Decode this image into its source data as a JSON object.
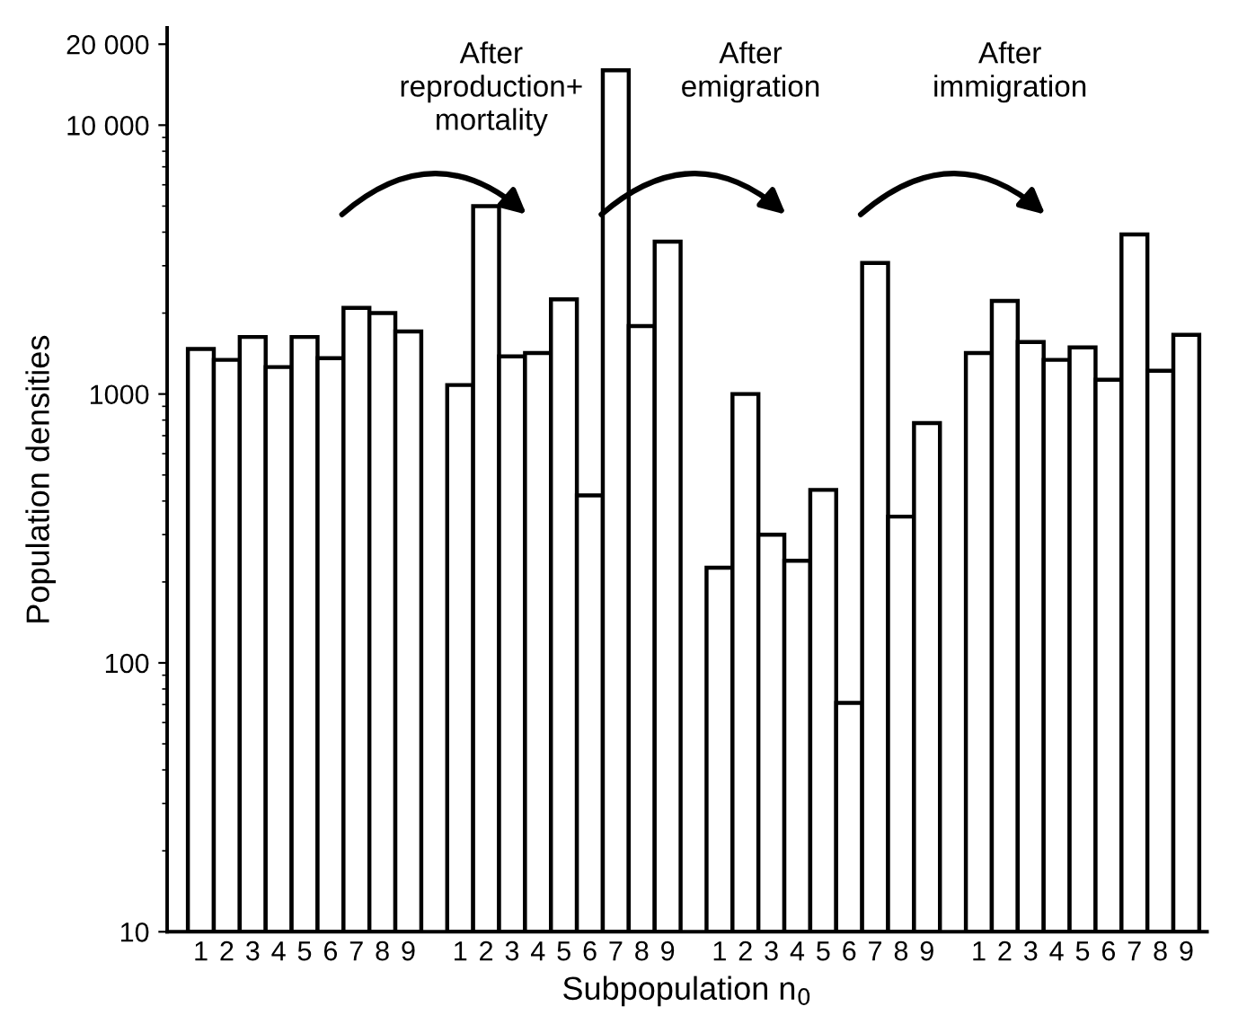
{
  "chart_data": {
    "type": "bar",
    "xlabel": "Subpopulation n$_{0}$",
    "ylabel": "Population densities",
    "categories": [
      "1",
      "2",
      "3",
      "4",
      "5",
      "6",
      "7",
      "8",
      "9",
      null,
      "1",
      "2",
      "3",
      "4",
      "5",
      "6",
      "7",
      "8",
      "9",
      null,
      "1",
      "2",
      "3",
      "4",
      "5",
      "6",
      "7",
      "8",
      "9",
      null,
      "1",
      "2",
      "3",
      "4",
      "5",
      "6",
      "7",
      "8",
      "9"
    ],
    "values": [
      1470,
      1340,
      1630,
      1260,
      1630,
      1360,
      2090,
      2000,
      1710,
      null,
      1080,
      5000,
      1380,
      1420,
      2250,
      420,
      16000,
      1790,
      3690,
      null,
      226,
      1000,
      300,
      240,
      440,
      71,
      3070,
      350,
      780,
      null,
      1420,
      2220,
      1560,
      1340,
      1490,
      1130,
      3920,
      1220,
      1660
    ],
    "color": "#ffffff",
    "log": true,
    "ylim": [
      10,
      23000
    ],
    "yticks": [
      10,
      100,
      1000,
      {
        "value": 10000,
        "label": "10 000"
      },
      {
        "value": 20000,
        "label": "20 000"
      }
    ],
    "grid": false,
    "annotations": [
      "After\nreproduction+\nmortality",
      "After\nemigration",
      "After\nimmigration"
    ]
  }
}
